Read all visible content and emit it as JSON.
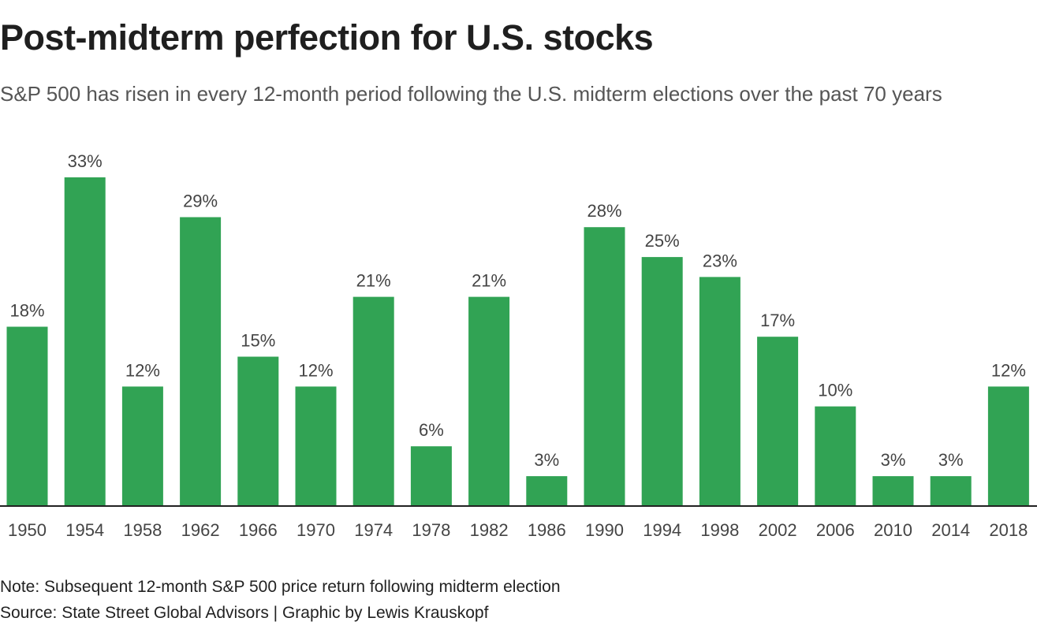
{
  "header": {
    "title": "Post-midterm perfection for U.S. stocks",
    "subtitle": "S&P 500 has risen in every 12-month period following the U.S. midterm elections over the past 70 years"
  },
  "footer": {
    "note": "Note: Subsequent 12-month S&P 500 price return following midterm election",
    "source": "Source: State Street Global Advisors | Graphic by Lewis Krauskopf"
  },
  "colors": {
    "bar": "#31a354",
    "axis": "#222222"
  },
  "chart_data": {
    "type": "bar",
    "title": "Post-midterm perfection for U.S. stocks",
    "xlabel": "",
    "ylabel": "",
    "ylim": [
      0,
      33
    ],
    "grid": false,
    "categories": [
      "1950",
      "1954",
      "1958",
      "1962",
      "1966",
      "1970",
      "1974",
      "1978",
      "1982",
      "1986",
      "1990",
      "1994",
      "1998",
      "2002",
      "2006",
      "2010",
      "2014",
      "2018"
    ],
    "values": [
      18,
      33,
      12,
      29,
      15,
      12,
      21,
      6,
      21,
      3,
      28,
      25,
      23,
      17,
      10,
      3,
      3,
      12
    ],
    "labels": [
      "18%",
      "33%",
      "12%",
      "29%",
      "15%",
      "12%",
      "21%",
      "6%",
      "21%",
      "3%",
      "28%",
      "25%",
      "23%",
      "17%",
      "10%",
      "3%",
      "3%",
      "12%"
    ]
  }
}
